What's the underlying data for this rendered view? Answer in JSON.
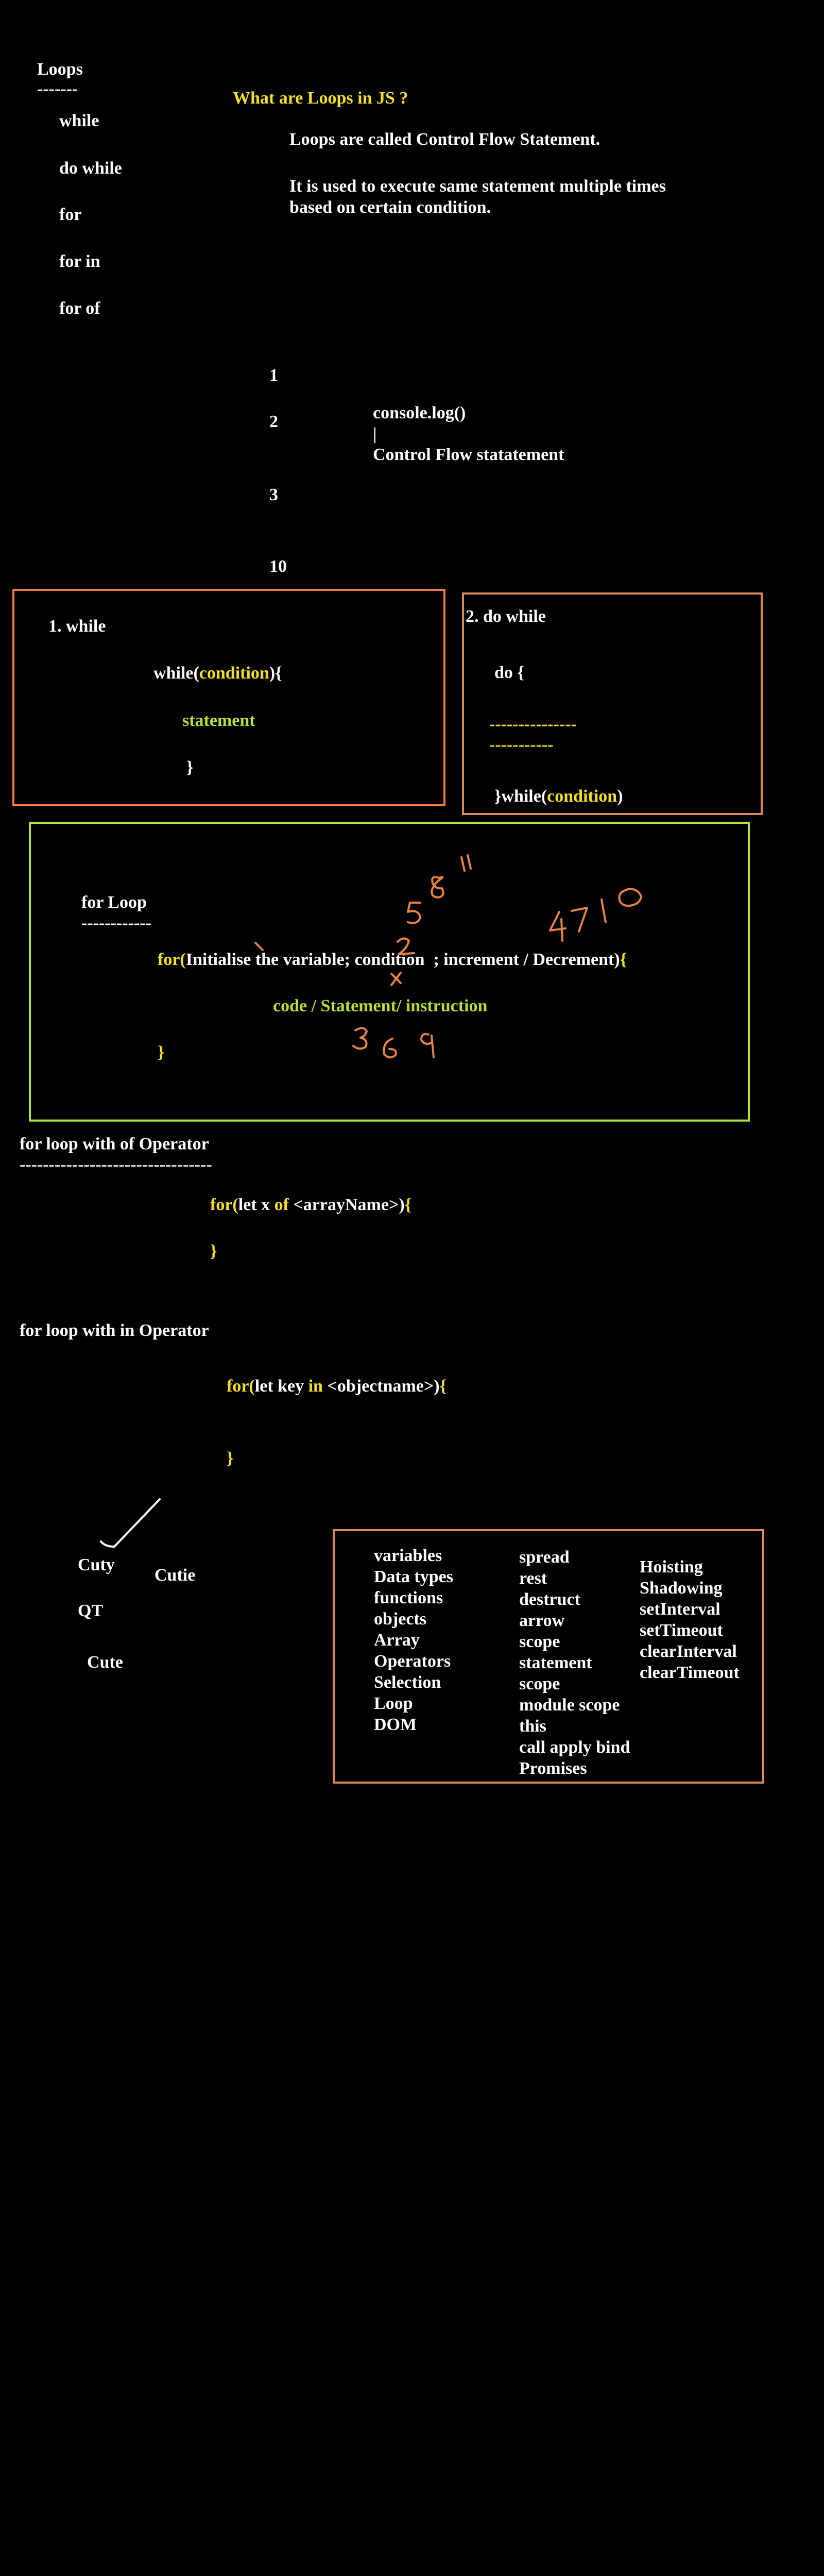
{
  "colors": {
    "background": "#000000",
    "text": "#ffffff",
    "keyword": "#f5e020",
    "accent_green": "#b8e02a",
    "box_orange": "#f07a45",
    "box_green": "#b5e23a",
    "ink_orange": "#e8834a"
  },
  "sidebar": {
    "title": "Loops",
    "underline": "-------",
    "items": [
      "while",
      "do while",
      "for",
      "for in",
      "for of"
    ]
  },
  "intro": {
    "heading": "What are Loops in JS ?",
    "line1": "Loops are called Control Flow Statement.",
    "line2": "It is used to execute same statement multiple times",
    "line3": "based on certain condition."
  },
  "numbers": [
    "1",
    "2",
    "3",
    "10"
  ],
  "console_note": {
    "line1": "console.log()",
    "line2": "|",
    "line3": "Control Flow statatement"
  },
  "while_box": {
    "title": "1. while",
    "kw": "while(",
    "cond": "condition",
    "close": "){",
    "statement": "statement",
    "brace": "}"
  },
  "do_while_box": {
    "title": "2. do while",
    "open": "do {",
    "dash1": "---------------",
    "dash2": "-----------",
    "close_pre": "}while(",
    "cond": "condition",
    "close_post": ")"
  },
  "for_box": {
    "title": "for Loop",
    "underline": "------------",
    "kw": "for(",
    "body": "Initialise the variable; condition  ; increment / Decrement)",
    "open": "{",
    "statement": "code / Statement/ instruction",
    "brace": "}",
    "annotations": [
      "5 8 11",
      "4 7 10",
      "3 6 9",
      "2",
      "X"
    ]
  },
  "for_of": {
    "title": "for loop with of Operator",
    "underline": "---------------------------------",
    "kw": "for(",
    "pre": "let x ",
    "op": "of",
    "post": " <arrayName>)",
    "open": "{",
    "brace": "}"
  },
  "for_in": {
    "title": "for loop with in Operator",
    "kw": "for(",
    "pre": "let key ",
    "op": "in",
    "post": " <objectname>)",
    "open": "{",
    "brace": "}"
  },
  "names": [
    "Cuty",
    "Cutie",
    "QT",
    "Cute"
  ],
  "topics": {
    "col1": [
      "variables",
      "Data types",
      "functions",
      "objects",
      "Array",
      "Operators",
      "Selection",
      "Loop",
      "DOM"
    ],
    "col2": [
      "spread",
      "rest",
      "destruct",
      "arrow",
      "scope",
      "statement",
      "scope",
      "module scope",
      "this",
      "call apply bind",
      "Promises"
    ],
    "col3": [
      "Hoisting",
      "Shadowing",
      "setInterval",
      "setTimeout",
      "clearInterval",
      "clearTimeout"
    ]
  }
}
